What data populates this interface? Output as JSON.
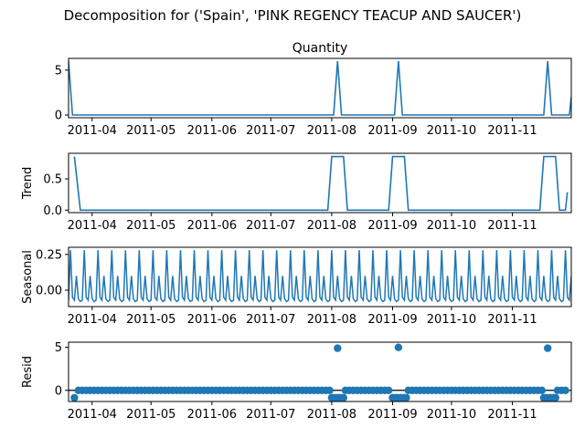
{
  "figure": {
    "suptitle": "Decomposition for ('Spain', 'PINK REGENCY TEACUP AND SAUCER')",
    "line_color": "#1f77b4",
    "axis_color": "#000000"
  },
  "chart_data": [
    {
      "type": "line",
      "title": "Quantity",
      "ylabel": "",
      "xlim": [
        "2011-03-20",
        "2011-12-01"
      ],
      "ylim": [
        -0.3,
        6.3
      ],
      "x_ticks": [
        "2011-04",
        "2011-05",
        "2011-06",
        "2011-07",
        "2011-08",
        "2011-09",
        "2011-10",
        "2011-11"
      ],
      "x_tick_dates": [
        "2011-04-01",
        "2011-05-01",
        "2011-06-01",
        "2011-07-01",
        "2011-08-01",
        "2011-09-01",
        "2011-10-01",
        "2011-11-01"
      ],
      "y_ticks": [
        0,
        5
      ],
      "series": [
        {
          "x": [
            "2011-03-20",
            "2011-03-22",
            "2011-08-02",
            "2011-08-04",
            "2011-08-06",
            "2011-09-02",
            "2011-09-04",
            "2011-09-06",
            "2011-11-17",
            "2011-11-19",
            "2011-11-21",
            "2011-11-30",
            "2011-12-01"
          ],
          "values": [
            6,
            0,
            0,
            6,
            0,
            0,
            6,
            0,
            0,
            6,
            0,
            0,
            2
          ]
        }
      ]
    },
    {
      "type": "line",
      "title": "",
      "ylabel": "Trend",
      "xlim": [
        "2011-03-20",
        "2011-12-01"
      ],
      "ylim": [
        -0.04,
        0.91
      ],
      "x_ticks": [
        "2011-04",
        "2011-05",
        "2011-06",
        "2011-07",
        "2011-08",
        "2011-09",
        "2011-10",
        "2011-11"
      ],
      "x_tick_dates": [
        "2011-04-01",
        "2011-05-01",
        "2011-06-01",
        "2011-07-01",
        "2011-08-01",
        "2011-09-01",
        "2011-10-01",
        "2011-11-01"
      ],
      "y_ticks": [
        0.0,
        0.5
      ],
      "y_tick_labels": [
        "0.0",
        "0.5"
      ],
      "series": [
        {
          "x": [
            "2011-03-23",
            "2011-03-26",
            "2011-07-30",
            "2011-08-01",
            "2011-08-07",
            "2011-08-09",
            "2011-08-30",
            "2011-09-01",
            "2011-09-07",
            "2011-09-09",
            "2011-11-15",
            "2011-11-17",
            "2011-11-23",
            "2011-11-25",
            "2011-11-28",
            "2011-11-29"
          ],
          "values": [
            0.857,
            0,
            0,
            0.857,
            0.857,
            0,
            0,
            0.857,
            0.857,
            0,
            0,
            0.857,
            0.857,
            0,
            0,
            0.286
          ]
        }
      ]
    },
    {
      "type": "line",
      "title": "",
      "ylabel": "Seasonal",
      "xlim": [
        "2011-03-20",
        "2011-12-01"
      ],
      "ylim": [
        -0.115,
        0.3
      ],
      "x_ticks": [
        "2011-04",
        "2011-05",
        "2011-06",
        "2011-07",
        "2011-08",
        "2011-09",
        "2011-10",
        "2011-11"
      ],
      "x_tick_dates": [
        "2011-04-01",
        "2011-05-01",
        "2011-06-01",
        "2011-07-01",
        "2011-08-01",
        "2011-09-01",
        "2011-10-01",
        "2011-11-01"
      ],
      "y_ticks": [
        0.0,
        0.25
      ],
      "y_tick_labels": [
        "0.00",
        "0.25"
      ],
      "series": [
        {
          "start": "2011-03-20",
          "end": "2011-12-01",
          "period_days": 7,
          "pattern": [
            -0.07,
            0.28,
            -0.05,
            -0.07,
            0.1,
            -0.06,
            -0.08
          ]
        }
      ]
    },
    {
      "type": "scatter",
      "title": "",
      "ylabel": "Resid",
      "xlim": [
        "2011-03-20",
        "2011-12-01"
      ],
      "ylim": [
        -1.3,
        5.6
      ],
      "x_ticks": [
        "2011-04",
        "2011-05",
        "2011-06",
        "2011-07",
        "2011-08",
        "2011-09",
        "2011-10",
        "2011-11"
      ],
      "x_tick_dates": [
        "2011-04-01",
        "2011-05-01",
        "2011-06-01",
        "2011-07-01",
        "2011-08-01",
        "2011-09-01",
        "2011-10-01",
        "2011-11-01"
      ],
      "y_ticks": [
        0,
        5
      ],
      "series": [
        {
          "start": "2011-03-23",
          "end": "2011-11-29",
          "step_days": 2,
          "baseline": 0,
          "spikes": [
            {
              "x": "2011-08-04",
              "value": 4.9
            },
            {
              "x": "2011-09-04",
              "value": 5.0
            },
            {
              "x": "2011-11-19",
              "value": 4.9
            }
          ],
          "dips": [
            {
              "from": "2011-08-01",
              "to": "2011-08-07",
              "value": -0.86
            },
            {
              "from": "2011-09-01",
              "to": "2011-09-08",
              "value": -0.86
            },
            {
              "from": "2011-11-17",
              "to": "2011-11-23",
              "value": -0.86
            },
            {
              "x": "2011-03-23",
              "value": -0.86
            }
          ]
        }
      ]
    }
  ]
}
